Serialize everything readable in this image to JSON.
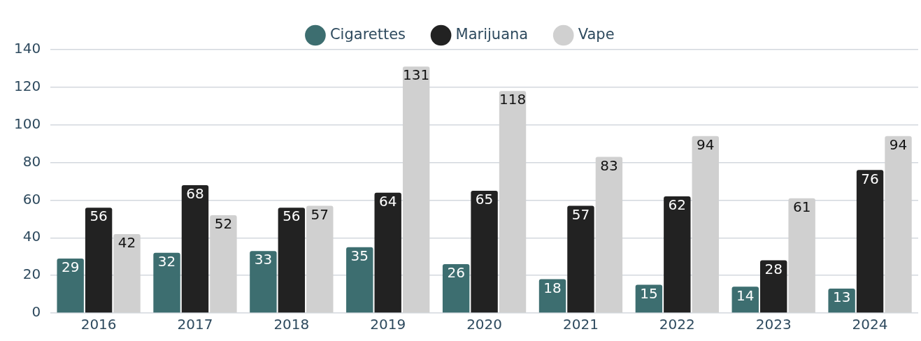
{
  "chart_data": {
    "type": "bar",
    "categories": [
      "2016",
      "2017",
      "2018",
      "2019",
      "2020",
      "2021",
      "2022",
      "2023",
      "2024"
    ],
    "series": [
      {
        "name": "Cigarettes",
        "color": "#3d6e70",
        "values": [
          29,
          32,
          33,
          35,
          26,
          18,
          15,
          14,
          13
        ]
      },
      {
        "name": "Marijuana",
        "color": "#222222",
        "values": [
          56,
          68,
          56,
          64,
          65,
          57,
          62,
          28,
          76
        ]
      },
      {
        "name": "Vape",
        "color": "#d0d0d0",
        "values": [
          42,
          52,
          57,
          131,
          118,
          83,
          94,
          61,
          94
        ]
      }
    ],
    "ylim": [
      0,
      140
    ],
    "yticks": [
      0,
      20,
      40,
      60,
      80,
      100,
      120,
      140
    ],
    "grid": "y",
    "legend": "top",
    "data_labels": true
  }
}
